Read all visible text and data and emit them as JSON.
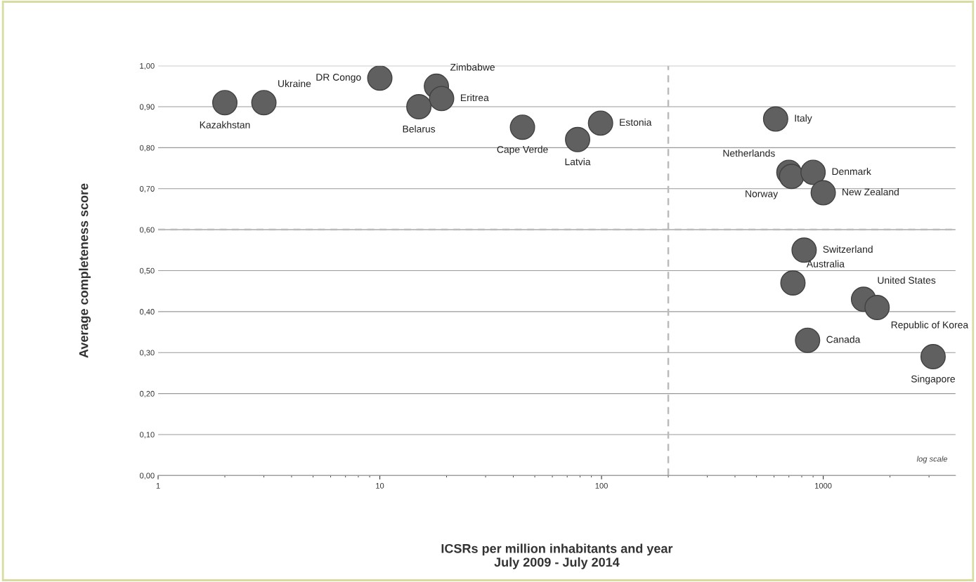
{
  "chart_data": {
    "type": "scatter",
    "xlabel": "ICSRs per million inhabitants and year\nJuly 2009 - July 2014",
    "ylabel": "Average completeness score",
    "x": [
      2.0,
      3.0,
      10,
      18,
      19,
      15,
      44,
      78,
      99,
      610,
      700,
      720,
      900,
      1000,
      820,
      730,
      1520,
      1750,
      850,
      3130
    ],
    "values": [
      0.91,
      0.91,
      0.97,
      0.95,
      0.92,
      0.9,
      0.85,
      0.82,
      0.86,
      0.87,
      0.74,
      0.73,
      0.74,
      0.69,
      0.55,
      0.47,
      0.43,
      0.41,
      0.33,
      0.29
    ],
    "color": "#606060",
    "marker": "circle",
    "log": "x",
    "xlim": [
      1,
      3950
    ],
    "xticks": [
      1,
      10,
      100,
      1000
    ],
    "ylim": [
      0,
      1
    ],
    "yticks": [
      {
        "value": 0,
        "label": "0,00"
      },
      {
        "value": 0.1,
        "label": "0,10"
      },
      {
        "value": 0.2,
        "label": "0,20"
      },
      {
        "value": 0.3,
        "label": "0,30"
      },
      {
        "value": 0.4,
        "label": "0,40"
      },
      {
        "value": 0.5,
        "label": "0,50"
      },
      {
        "value": 0.6,
        "label": "0,60"
      },
      {
        "value": 0.7,
        "label": "0,70"
      },
      {
        "value": 0.8,
        "label": "0,80"
      },
      {
        "value": 0.9,
        "label": "0,90"
      },
      {
        "value": 1,
        "label": "1,00"
      }
    ],
    "grid": "y",
    "ref_lines": [
      {
        "axis": "x",
        "value": 200,
        "color": "#bbbbbb",
        "line_style": "dashed"
      },
      {
        "axis": "y",
        "value": 0.6,
        "color": "#bbbbbb",
        "line_style": "dashed"
      }
    ],
    "annotations": [
      {
        "text": "Kazakhstan",
        "x": 2.0,
        "y": 0.91
      },
      {
        "text": "Ukraine",
        "x": 3.0,
        "y": 0.91
      },
      {
        "text": "DR Congo",
        "x": 10,
        "y": 0.97
      },
      {
        "text": "Zimbabwe",
        "x": 18,
        "y": 0.95
      },
      {
        "text": "Eritrea",
        "x": 19,
        "y": 0.92
      },
      {
        "text": "Belarus",
        "x": 15,
        "y": 0.9
      },
      {
        "text": "Cape Verde",
        "x": 44,
        "y": 0.85
      },
      {
        "text": "Latvia",
        "x": 78,
        "y": 0.82
      },
      {
        "text": "Estonia",
        "x": 99,
        "y": 0.86
      },
      {
        "text": "Italy",
        "x": 610,
        "y": 0.87
      },
      {
        "text": "Netherlands",
        "x": 700,
        "y": 0.74
      },
      {
        "text": "Norway",
        "x": 720,
        "y": 0.73
      },
      {
        "text": "Denmark",
        "x": 900,
        "y": 0.74
      },
      {
        "text": "New Zealand",
        "x": 1000,
        "y": 0.69
      },
      {
        "text": "Switzerland",
        "x": 820,
        "y": 0.55
      },
      {
        "text": "Australia",
        "x": 730,
        "y": 0.47
      },
      {
        "text": "United States",
        "x": 1520,
        "y": 0.43
      },
      {
        "text": "Republic of Korea",
        "x": 1750,
        "y": 0.41
      },
      {
        "text": "Canada",
        "x": 850,
        "y": 0.33
      },
      {
        "text": "Singapore",
        "x": 3130,
        "y": 0.29
      },
      "log scale"
    ]
  }
}
